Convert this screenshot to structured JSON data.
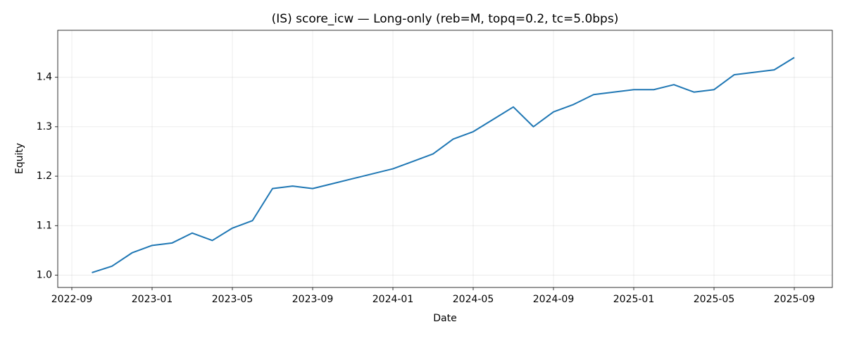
{
  "chart_data": {
    "type": "line",
    "title": "(IS) score_icw — Long-only (reb=M, topq=0.2, tc=5.0bps)",
    "x_label": "Date",
    "y_label": "Equity",
    "x": [
      "2022-10",
      "2022-11",
      "2022-12",
      "2023-01",
      "2023-02",
      "2023-03",
      "2023-04",
      "2023-05",
      "2023-06",
      "2023-07",
      "2023-08",
      "2023-09",
      "2023-10",
      "2023-11",
      "2023-12",
      "2024-01",
      "2024-02",
      "2024-03",
      "2024-04",
      "2024-05",
      "2024-06",
      "2024-07",
      "2024-08",
      "2024-09",
      "2024-10",
      "2024-11",
      "2024-12",
      "2025-01",
      "2025-02",
      "2025-03",
      "2025-04",
      "2025-05",
      "2025-06",
      "2025-07",
      "2025-08",
      "2025-09"
    ],
    "series": [
      {
        "color": "#1f77b4",
        "values": [
          1.005,
          1.018,
          1.045,
          1.06,
          1.065,
          1.085,
          1.07,
          1.095,
          1.11,
          1.175,
          1.18,
          1.175,
          1.185,
          1.195,
          1.205,
          1.215,
          1.23,
          1.245,
          1.275,
          1.29,
          1.315,
          1.34,
          1.3,
          1.33,
          1.345,
          1.365,
          1.37,
          1.375,
          1.375,
          1.385,
          1.37,
          1.375,
          1.405,
          1.41,
          1.415,
          1.44
        ]
      }
    ],
    "xlim": [
      "2022-08",
      "2025-10"
    ],
    "xticks": [
      "2022-09",
      "2023-01",
      "2023-05",
      "2023-09",
      "2024-01",
      "2024-05",
      "2024-09",
      "2025-01",
      "2025-05",
      "2025-09"
    ],
    "ylim": [
      0.975,
      1.495
    ],
    "yticks": [
      {
        "value": 1,
        "label": "1.0"
      },
      1.1,
      1.2,
      1.3,
      1.4
    ],
    "grid": true
  }
}
